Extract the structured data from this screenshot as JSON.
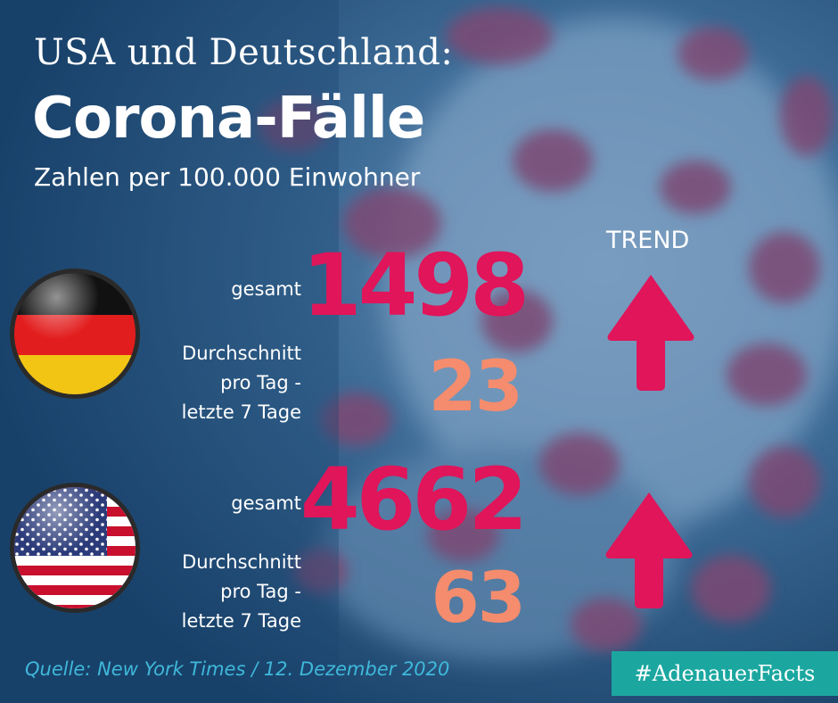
{
  "header": {
    "supertitle": "USA und Deutschland:",
    "title": "Corona-Fälle",
    "subtitle": "Zahlen per 100.000 Einwohner"
  },
  "trend_label": "TREND",
  "countries": [
    {
      "flag_icon": "germany-flag-icon",
      "total_label": "gesamt",
      "total_value": "1498",
      "avg_label_line1": "Durchschnitt",
      "avg_label_line2": "pro Tag -",
      "avg_label_line3": "letzte 7 Tage",
      "avg_value": "23",
      "trend": "up"
    },
    {
      "flag_icon": "usa-flag-icon",
      "total_label": "gesamt",
      "total_value": "4662",
      "avg_label_line1": "Durchschnitt",
      "avg_label_line2": "pro Tag -",
      "avg_label_line3": "letzte 7 Tage",
      "avg_value": "63",
      "trend": "up"
    }
  ],
  "source": "Quelle: New York Times / 12. Dezember 2020",
  "hashtag": "#AdenauerFacts",
  "colors": {
    "background": "#1d4a72",
    "total_value": "#e0155a",
    "avg_value": "#f48c6d",
    "arrow": "#e0155a",
    "source": "#3fb8da",
    "hashtag_bg": "#1ba7a0"
  }
}
